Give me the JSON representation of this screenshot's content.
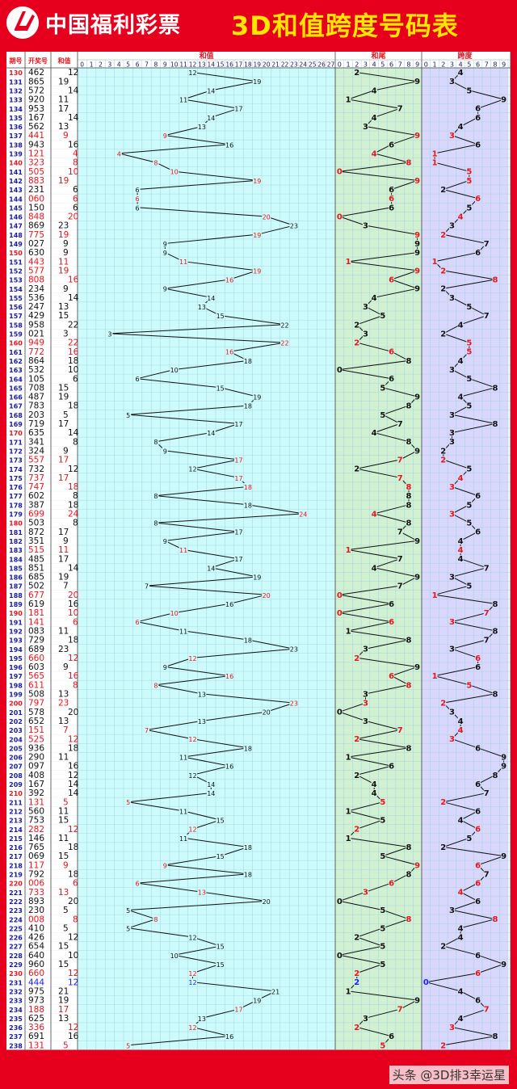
{
  "header": {
    "brand": "中国福利彩票",
    "title": "3D和值跨度号码表"
  },
  "watermark": "头条 @3D排3幸运星",
  "chart_data": {
    "type": "table",
    "columns": [
      "期号",
      "开奖号",
      "和值"
    ],
    "panels": [
      {
        "name": "和值",
        "range": [
          0,
          27
        ]
      },
      {
        "name": "和尾",
        "range": [
          0,
          9
        ]
      },
      {
        "name": "跨度",
        "range": [
          0,
          9
        ]
      }
    ],
    "rows": [
      {
        "issue": "130",
        "number": "462",
        "sum": 12,
        "tail": 2,
        "span": 4,
        "color": "black"
      },
      {
        "issue": "131",
        "number": "865",
        "sum": 19,
        "tail": 9,
        "span": 3,
        "color": "black"
      },
      {
        "issue": "132",
        "number": "572",
        "sum": 14,
        "tail": 4,
        "span": 5,
        "color": "black"
      },
      {
        "issue": "133",
        "number": "920",
        "sum": 11,
        "tail": 1,
        "span": 9,
        "color": "black"
      },
      {
        "issue": "134",
        "number": "953",
        "sum": 17,
        "tail": 7,
        "span": 6,
        "color": "black"
      },
      {
        "issue": "135",
        "number": "167",
        "sum": 14,
        "tail": 4,
        "span": 6,
        "color": "black"
      },
      {
        "issue": "136",
        "number": "562",
        "sum": 13,
        "tail": 3,
        "span": 4,
        "color": "black"
      },
      {
        "issue": "137",
        "number": "441",
        "sum": 9,
        "tail": 9,
        "span": 3,
        "color": "red"
      },
      {
        "issue": "138",
        "number": "943",
        "sum": 16,
        "tail": 6,
        "span": 6,
        "color": "black"
      },
      {
        "issue": "139",
        "number": "121",
        "sum": 4,
        "tail": 4,
        "span": 1,
        "color": "red"
      },
      {
        "issue": "140",
        "number": "323",
        "sum": 8,
        "tail": 8,
        "span": 1,
        "color": "red"
      },
      {
        "issue": "141",
        "number": "505",
        "sum": 10,
        "tail": 0,
        "span": 5,
        "color": "red"
      },
      {
        "issue": "142",
        "number": "883",
        "sum": 19,
        "tail": 9,
        "span": 5,
        "color": "red"
      },
      {
        "issue": "143",
        "number": "231",
        "sum": 6,
        "tail": 6,
        "span": 2,
        "color": "black"
      },
      {
        "issue": "144",
        "number": "060",
        "sum": 6,
        "tail": 6,
        "span": 6,
        "color": "red"
      },
      {
        "issue": "145",
        "number": "150",
        "sum": 6,
        "tail": 6,
        "span": 5,
        "color": "black"
      },
      {
        "issue": "146",
        "number": "848",
        "sum": 20,
        "tail": 0,
        "span": 4,
        "color": "red"
      },
      {
        "issue": "147",
        "number": "869",
        "sum": 23,
        "tail": 3,
        "span": 3,
        "color": "black"
      },
      {
        "issue": "148",
        "number": "775",
        "sum": 19,
        "tail": 9,
        "span": 2,
        "color": "red"
      },
      {
        "issue": "149",
        "number": "027",
        "sum": 9,
        "tail": 9,
        "span": 7,
        "color": "black"
      },
      {
        "issue": "150",
        "number": "630",
        "sum": 9,
        "tail": 9,
        "span": 6,
        "color": "black"
      },
      {
        "issue": "151",
        "number": "443",
        "sum": 11,
        "tail": 1,
        "span": 1,
        "color": "red"
      },
      {
        "issue": "152",
        "number": "577",
        "sum": 19,
        "tail": 9,
        "span": 2,
        "color": "red"
      },
      {
        "issue": "153",
        "number": "808",
        "sum": 16,
        "tail": 6,
        "span": 8,
        "color": "red"
      },
      {
        "issue": "154",
        "number": "234",
        "sum": 9,
        "tail": 9,
        "span": 2,
        "color": "black"
      },
      {
        "issue": "155",
        "number": "536",
        "sum": 14,
        "tail": 4,
        "span": 3,
        "color": "black"
      },
      {
        "issue": "156",
        "number": "247",
        "sum": 13,
        "tail": 3,
        "span": 5,
        "color": "black"
      },
      {
        "issue": "157",
        "number": "429",
        "sum": 15,
        "tail": 5,
        "span": 7,
        "color": "black"
      },
      {
        "issue": "158",
        "number": "958",
        "sum": 22,
        "tail": 2,
        "span": 4,
        "color": "black"
      },
      {
        "issue": "159",
        "number": "021",
        "sum": 3,
        "tail": 3,
        "span": 2,
        "color": "black"
      },
      {
        "issue": "160",
        "number": "949",
        "sum": 22,
        "tail": 2,
        "span": 5,
        "color": "red"
      },
      {
        "issue": "161",
        "number": "772",
        "sum": 16,
        "tail": 6,
        "span": 5,
        "color": "red"
      },
      {
        "issue": "162",
        "number": "864",
        "sum": 18,
        "tail": 8,
        "span": 4,
        "color": "black"
      },
      {
        "issue": "163",
        "number": "532",
        "sum": 10,
        "tail": 0,
        "span": 3,
        "color": "black"
      },
      {
        "issue": "164",
        "number": "105",
        "sum": 6,
        "tail": 6,
        "span": 5,
        "color": "black"
      },
      {
        "issue": "165",
        "number": "708",
        "sum": 15,
        "tail": 5,
        "span": 8,
        "color": "black"
      },
      {
        "issue": "166",
        "number": "487",
        "sum": 19,
        "tail": 9,
        "span": 4,
        "color": "black"
      },
      {
        "issue": "167",
        "number": "783",
        "sum": 18,
        "tail": 8,
        "span": 5,
        "color": "black"
      },
      {
        "issue": "168",
        "number": "203",
        "sum": 5,
        "tail": 5,
        "span": 3,
        "color": "black"
      },
      {
        "issue": "169",
        "number": "719",
        "sum": 17,
        "tail": 7,
        "span": 8,
        "color": "black"
      },
      {
        "issue": "170",
        "number": "635",
        "sum": 14,
        "tail": 4,
        "span": 3,
        "color": "black"
      },
      {
        "issue": "171",
        "number": "341",
        "sum": 8,
        "tail": 8,
        "span": 3,
        "color": "black"
      },
      {
        "issue": "172",
        "number": "324",
        "sum": 9,
        "tail": 9,
        "span": 2,
        "color": "black"
      },
      {
        "issue": "173",
        "number": "557",
        "sum": 17,
        "tail": 7,
        "span": 2,
        "color": "red"
      },
      {
        "issue": "174",
        "number": "732",
        "sum": 12,
        "tail": 2,
        "span": 5,
        "color": "black"
      },
      {
        "issue": "175",
        "number": "737",
        "sum": 17,
        "tail": 7,
        "span": 4,
        "color": "red"
      },
      {
        "issue": "176",
        "number": "747",
        "sum": 18,
        "tail": 8,
        "span": 3,
        "color": "red"
      },
      {
        "issue": "177",
        "number": "602",
        "sum": 8,
        "tail": 8,
        "span": 6,
        "color": "black"
      },
      {
        "issue": "178",
        "number": "387",
        "sum": 18,
        "tail": 8,
        "span": 5,
        "color": "black"
      },
      {
        "issue": "179",
        "number": "699",
        "sum": 24,
        "tail": 4,
        "span": 3,
        "color": "red"
      },
      {
        "issue": "180",
        "number": "503",
        "sum": 8,
        "tail": 8,
        "span": 5,
        "color": "black"
      },
      {
        "issue": "181",
        "number": "872",
        "sum": 17,
        "tail": 7,
        "span": 6,
        "color": "black"
      },
      {
        "issue": "182",
        "number": "351",
        "sum": 9,
        "tail": 9,
        "span": 4,
        "color": "black"
      },
      {
        "issue": "183",
        "number": "515",
        "sum": 11,
        "tail": 1,
        "span": 4,
        "color": "red"
      },
      {
        "issue": "184",
        "number": "485",
        "sum": 17,
        "tail": 7,
        "span": 4,
        "color": "black"
      },
      {
        "issue": "185",
        "number": "851",
        "sum": 14,
        "tail": 4,
        "span": 7,
        "color": "black"
      },
      {
        "issue": "186",
        "number": "685",
        "sum": 19,
        "tail": 9,
        "span": 3,
        "color": "black"
      },
      {
        "issue": "187",
        "number": "502",
        "sum": 7,
        "tail": 7,
        "span": 5,
        "color": "black"
      },
      {
        "issue": "188",
        "number": "677",
        "sum": 20,
        "tail": 0,
        "span": 1,
        "color": "red"
      },
      {
        "issue": "189",
        "number": "619",
        "sum": 16,
        "tail": 6,
        "span": 8,
        "color": "black"
      },
      {
        "issue": "190",
        "number": "181",
        "sum": 10,
        "tail": 0,
        "span": 7,
        "color": "red"
      },
      {
        "issue": "191",
        "number": "141",
        "sum": 6,
        "tail": 6,
        "span": 3,
        "color": "red"
      },
      {
        "issue": "192",
        "number": "083",
        "sum": 11,
        "tail": 1,
        "span": 8,
        "color": "black"
      },
      {
        "issue": "193",
        "number": "729",
        "sum": 18,
        "tail": 8,
        "span": 7,
        "color": "black"
      },
      {
        "issue": "194",
        "number": "689",
        "sum": 23,
        "tail": 3,
        "span": 3,
        "color": "black"
      },
      {
        "issue": "195",
        "number": "660",
        "sum": 12,
        "tail": 2,
        "span": 6,
        "color": "red"
      },
      {
        "issue": "196",
        "number": "603",
        "sum": 9,
        "tail": 9,
        "span": 6,
        "color": "black"
      },
      {
        "issue": "197",
        "number": "565",
        "sum": 16,
        "tail": 6,
        "span": 1,
        "color": "red"
      },
      {
        "issue": "198",
        "number": "611",
        "sum": 8,
        "tail": 8,
        "span": 5,
        "color": "red"
      },
      {
        "issue": "199",
        "number": "508",
        "sum": 13,
        "tail": 3,
        "span": 8,
        "color": "black"
      },
      {
        "issue": "200",
        "number": "797",
        "sum": 23,
        "tail": 3,
        "span": 2,
        "color": "red"
      },
      {
        "issue": "201",
        "number": "578",
        "sum": 20,
        "tail": 0,
        "span": 3,
        "color": "black"
      },
      {
        "issue": "202",
        "number": "652",
        "sum": 13,
        "tail": 3,
        "span": 4,
        "color": "black"
      },
      {
        "issue": "203",
        "number": "151",
        "sum": 7,
        "tail": 7,
        "span": 4,
        "color": "red"
      },
      {
        "issue": "204",
        "number": "525",
        "sum": 12,
        "tail": 2,
        "span": 3,
        "color": "red"
      },
      {
        "issue": "205",
        "number": "936",
        "sum": 18,
        "tail": 8,
        "span": 6,
        "color": "black"
      },
      {
        "issue": "206",
        "number": "290",
        "sum": 11,
        "tail": 1,
        "span": 9,
        "color": "black"
      },
      {
        "issue": "207",
        "number": "097",
        "sum": 16,
        "tail": 6,
        "span": 9,
        "color": "black"
      },
      {
        "issue": "208",
        "number": "408",
        "sum": 12,
        "tail": 2,
        "span": 8,
        "color": "black"
      },
      {
        "issue": "209",
        "number": "167",
        "sum": 14,
        "tail": 4,
        "span": 6,
        "color": "black"
      },
      {
        "issue": "210",
        "number": "392",
        "sum": 14,
        "tail": 4,
        "span": 7,
        "color": "black"
      },
      {
        "issue": "211",
        "number": "131",
        "sum": 5,
        "tail": 5,
        "span": 2,
        "color": "red"
      },
      {
        "issue": "212",
        "number": "560",
        "sum": 11,
        "tail": 1,
        "span": 6,
        "color": "black"
      },
      {
        "issue": "213",
        "number": "753",
        "sum": 15,
        "tail": 5,
        "span": 4,
        "color": "black"
      },
      {
        "issue": "214",
        "number": "282",
        "sum": 12,
        "tail": 2,
        "span": 6,
        "color": "red"
      },
      {
        "issue": "215",
        "number": "146",
        "sum": 11,
        "tail": 1,
        "span": 5,
        "color": "black"
      },
      {
        "issue": "216",
        "number": "765",
        "sum": 18,
        "tail": 8,
        "span": 2,
        "color": "black"
      },
      {
        "issue": "217",
        "number": "069",
        "sum": 15,
        "tail": 5,
        "span": 9,
        "color": "black"
      },
      {
        "issue": "218",
        "number": "117",
        "sum": 9,
        "tail": 9,
        "span": 6,
        "color": "red"
      },
      {
        "issue": "219",
        "number": "792",
        "sum": 18,
        "tail": 8,
        "span": 7,
        "color": "black"
      },
      {
        "issue": "220",
        "number": "006",
        "sum": 6,
        "tail": 6,
        "span": 6,
        "color": "red"
      },
      {
        "issue": "221",
        "number": "733",
        "sum": 13,
        "tail": 3,
        "span": 4,
        "color": "red"
      },
      {
        "issue": "222",
        "number": "893",
        "sum": 20,
        "tail": 0,
        "span": 6,
        "color": "black"
      },
      {
        "issue": "223",
        "number": "230",
        "sum": 5,
        "tail": 5,
        "span": 3,
        "color": "black"
      },
      {
        "issue": "224",
        "number": "008",
        "sum": 8,
        "tail": 8,
        "span": 8,
        "color": "red"
      },
      {
        "issue": "225",
        "number": "410",
        "sum": 5,
        "tail": 5,
        "span": 4,
        "color": "black"
      },
      {
        "issue": "226",
        "number": "426",
        "sum": 12,
        "tail": 2,
        "span": 4,
        "color": "black"
      },
      {
        "issue": "227",
        "number": "654",
        "sum": 15,
        "tail": 5,
        "span": 2,
        "color": "black"
      },
      {
        "issue": "228",
        "number": "640",
        "sum": 10,
        "tail": 0,
        "span": 6,
        "color": "black"
      },
      {
        "issue": "229",
        "number": "960",
        "sum": 15,
        "tail": 5,
        "span": 9,
        "color": "black"
      },
      {
        "issue": "230",
        "number": "660",
        "sum": 12,
        "tail": 2,
        "span": 6,
        "color": "red"
      },
      {
        "issue": "231",
        "number": "444",
        "sum": 12,
        "tail": 2,
        "span": 0,
        "color": "blue"
      },
      {
        "issue": "232",
        "number": "975",
        "sum": 21,
        "tail": 1,
        "span": 4,
        "color": "black"
      },
      {
        "issue": "233",
        "number": "973",
        "sum": 19,
        "tail": 9,
        "span": 6,
        "color": "black"
      },
      {
        "issue": "234",
        "number": "188",
        "sum": 17,
        "tail": 7,
        "span": 7,
        "color": "red"
      },
      {
        "issue": "235",
        "number": "625",
        "sum": 13,
        "tail": 3,
        "span": 4,
        "color": "black"
      },
      {
        "issue": "236",
        "number": "336",
        "sum": 12,
        "tail": 2,
        "span": 3,
        "color": "red"
      },
      {
        "issue": "237",
        "number": "691",
        "sum": 16,
        "tail": 6,
        "span": 8,
        "color": "black"
      },
      {
        "issue": "238",
        "number": "131",
        "sum": 5,
        "tail": 5,
        "span": 2,
        "color": "red"
      }
    ],
    "colors": {
      "red": "#e8141e",
      "blue": "#1a1aff",
      "black": "#111111",
      "header_bg": "#e6001e",
      "title_yellow": "#ffe600",
      "sum_panel_bg": "#cdfbfb",
      "tail_panel_bg": "#d2f0d2",
      "span_panel_bg": "#d9d7fb",
      "grid": "#9fd3e0"
    }
  }
}
